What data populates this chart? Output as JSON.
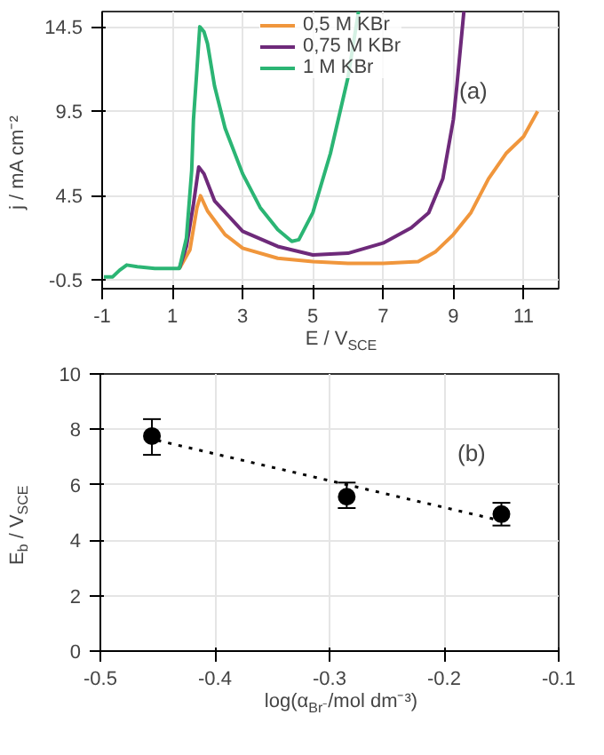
{
  "chart_data": [
    {
      "type": "line",
      "xlabel": "E / V$_{SCE}$",
      "ylabel": "j / mA cm⁻²",
      "annotations": [
        "(a)"
      ],
      "xlim": [
        -1,
        12
      ],
      "ylim": [
        -1,
        15.4
      ],
      "xticks": [
        -1,
        1,
        3,
        5,
        7,
        9,
        11
      ],
      "yticks": [
        -0.5,
        4.5,
        9.5,
        14.5
      ],
      "grid": true,
      "legend": "top",
      "line_style": "solid",
      "marker": "none",
      "series": [
        {
          "name": "0,5 M KBr",
          "color": "#f0963c",
          "x": [
            1.2,
            1.5,
            1.7,
            1.8,
            2,
            2.5,
            3,
            4,
            5,
            6,
            7,
            8,
            8.5,
            9,
            9.5,
            10,
            10.5,
            11,
            11.4
          ],
          "values": [
            0.2,
            1.3,
            3.8,
            4.5,
            3.6,
            2.2,
            1.4,
            0.8,
            0.6,
            0.5,
            0.5,
            0.6,
            1.2,
            2.2,
            3.5,
            5.5,
            7,
            8,
            9.5
          ]
        },
        {
          "name": "0,75 M KBr",
          "color": "#6e2a7a",
          "x": [
            1.2,
            1.4,
            1.6,
            1.75,
            1.9,
            2.2,
            3,
            4,
            5,
            6,
            7,
            7.8,
            8.3,
            8.7,
            9,
            9.1,
            9.3
          ],
          "values": [
            0.2,
            1.5,
            4,
            6.2,
            5.8,
            4.2,
            2.4,
            1.5,
            1,
            1.1,
            1.7,
            2.6,
            3.5,
            5.5,
            9,
            11,
            15.4
          ]
        },
        {
          "name": "1 M KBr",
          "color": "#2bb574",
          "x": [
            -0.95,
            -0.7,
            -0.5,
            -0.3,
            0,
            0.5,
            1.2,
            1.4,
            1.55,
            1.6,
            1.7,
            1.78,
            1.9,
            2,
            2.2,
            2.5,
            3,
            3.5,
            4,
            4.4,
            4.6,
            5,
            5.5,
            6,
            6.3
          ],
          "values": [
            -0.3,
            -0.3,
            0.1,
            0.4,
            0.3,
            0.2,
            0.2,
            2,
            6,
            9,
            12,
            14.5,
            14.2,
            13.5,
            11,
            8.5,
            5.8,
            3.8,
            2.5,
            1.8,
            1.9,
            3.5,
            7,
            11.5,
            15.4
          ]
        }
      ]
    },
    {
      "type": "scatter",
      "xlabel": "log(α$_{Br⁻}$/mol dm⁻³)",
      "ylabel": "E$_{b}$ / V$_{SCE}$",
      "annotations": [
        "(b)"
      ],
      "xlim": [
        -0.5,
        -0.1
      ],
      "ylim": [
        0,
        10
      ],
      "xticks": [
        -0.5,
        -0.4,
        -0.3,
        -0.2,
        -0.1
      ],
      "yticks": [
        0,
        2,
        4,
        6,
        8,
        10
      ],
      "grid": true,
      "legend": false,
      "series": [
        {
          "type": "scatter",
          "color": "#000000",
          "marker": "circle",
          "x": [
            -0.455,
            -0.285,
            -0.15
          ],
          "values": [
            7.76,
            5.57,
            4.94
          ],
          "errors": [
            [
              7.08,
              8.37
            ],
            [
              5.16,
              6.08
            ],
            [
              4.53,
              5.35
            ]
          ]
        },
        {
          "type": "line",
          "color": "#000000",
          "line_style": "dotted",
          "x": [
            -0.45,
            -0.15
          ],
          "values": [
            7.6,
            4.7
          ]
        }
      ]
    }
  ]
}
